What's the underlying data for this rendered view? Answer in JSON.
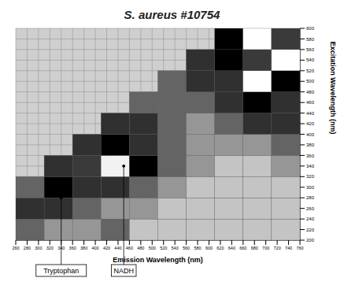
{
  "chart_data": {
    "type": "heatmap",
    "title": "S. aureus #10754",
    "x_label": "Emission Wavelength (nm)",
    "y_label": "Excitation Wavelength (nm)",
    "x": [
      285,
      335,
      385,
      435,
      485,
      535,
      585,
      635,
      685,
      735
    ],
    "y": [
      220,
      260,
      300,
      340,
      380,
      420,
      460,
      500,
      540,
      580
    ],
    "cells": [
      [
        3,
        2,
        2,
        3,
        1,
        1,
        1,
        1,
        1,
        1
      ],
      [
        4,
        5,
        3,
        2,
        2,
        1,
        1,
        1,
        1,
        1
      ],
      [
        3,
        6,
        5,
        4,
        3,
        2,
        1,
        1,
        1,
        1
      ],
      [
        null,
        4,
        8,
        9,
        6,
        3,
        2,
        1,
        1,
        2
      ],
      [
        null,
        null,
        5,
        6,
        5,
        3,
        2,
        2,
        2,
        3
      ],
      [
        null,
        null,
        null,
        4,
        4,
        3,
        2,
        3,
        4,
        4
      ],
      [
        null,
        null,
        null,
        null,
        3,
        3,
        3,
        4,
        6,
        5
      ],
      [
        null,
        null,
        null,
        null,
        null,
        3,
        4,
        5,
        7,
        6
      ],
      [
        null,
        null,
        null,
        null,
        null,
        null,
        5,
        6,
        8,
        7
      ],
      [
        null,
        null,
        null,
        null,
        null,
        null,
        null,
        6,
        7,
        8
      ]
    ],
    "xlim": [
      260,
      760
    ],
    "ylim": [
      200,
      600
    ],
    "xticks": [
      260,
      280,
      300,
      320,
      340,
      360,
      380,
      400,
      420,
      440,
      460,
      480,
      500,
      520,
      540,
      560,
      580,
      600,
      620,
      640,
      660,
      680,
      700,
      720,
      740,
      760
    ],
    "yticks": [
      200,
      220,
      240,
      260,
      280,
      300,
      320,
      340,
      360,
      380,
      400,
      420,
      440,
      460,
      480,
      500,
      520,
      540,
      560,
      580,
      600
    ],
    "grid": true,
    "annotations": [
      {
        "text": "Tryptophan",
        "x": 340,
        "y": 280
      },
      {
        "text": "NADH",
        "x": 450,
        "y": 340
      }
    ]
  }
}
